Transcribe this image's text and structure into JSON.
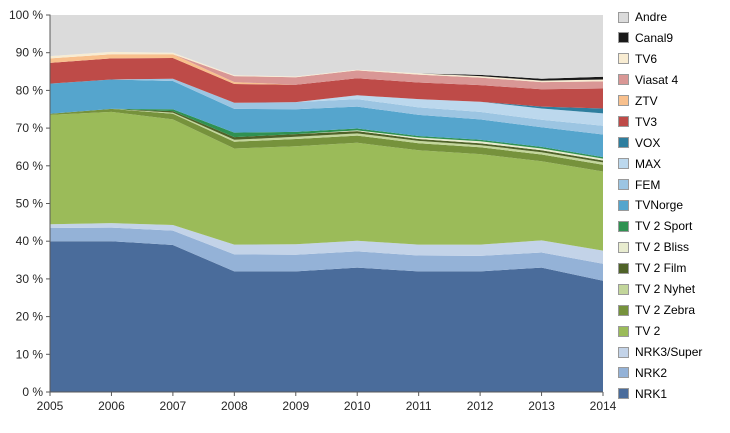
{
  "chart_data": {
    "type": "area",
    "stacked": true,
    "unit": "%",
    "title": "",
    "xlabel": "",
    "ylabel": "",
    "ylim": [
      0,
      100
    ],
    "grid": false,
    "legend_position": "right",
    "x": [
      2005,
      2006,
      2007,
      2008,
      2009,
      2010,
      2011,
      2012,
      2013,
      2014
    ],
    "y_ticks": [
      "0 %",
      "10 %",
      "20 %",
      "30 %",
      "40 %",
      "50 %",
      "60 %",
      "70 %",
      "80 %",
      "90 %",
      "100 %"
    ],
    "legend_order_top_to_bottom": [
      "Andre",
      "Canal9",
      "TV6",
      "Viasat 4",
      "ZTV",
      "TV3",
      "VOX",
      "MAX",
      "FEM",
      "TVNorge",
      "TV 2 Sport",
      "TV 2 Bliss",
      "TV 2 Film",
      "TV 2 Nyhet",
      "TV 2 Zebra",
      "TV 2",
      "NRK3/Super",
      "NRK2",
      "NRK1"
    ],
    "series": [
      {
        "name": "NRK1",
        "color": "#4A6C9B",
        "values": [
          40,
          40,
          39,
          32,
          32,
          33,
          32,
          32,
          33,
          29.5
        ]
      },
      {
        "name": "NRK2",
        "color": "#94B2D7",
        "values": [
          3.5,
          3.6,
          3.8,
          4.5,
          4.4,
          4.3,
          4.2,
          4.1,
          4,
          4.5
        ]
      },
      {
        "name": "NRK3/Super",
        "color": "#C3D3E8",
        "values": [
          1,
          1.2,
          1.5,
          2.6,
          2.8,
          2.8,
          2.9,
          3,
          3.2,
          3.5
        ]
      },
      {
        "name": "TV 2",
        "color": "#9BBB59",
        "values": [
          29,
          29.5,
          28,
          25.5,
          26,
          26,
          25,
          24,
          21,
          21
        ]
      },
      {
        "name": "TV 2 Zebra",
        "color": "#76923C",
        "values": [
          0.3,
          0.8,
          1.5,
          1.8,
          1.9,
          1.9,
          1.9,
          1.8,
          1.8,
          1.8
        ]
      },
      {
        "name": "TV 2 Nyhet",
        "color": "#C3D69B",
        "values": [
          0,
          0,
          0.3,
          0.5,
          0.6,
          0.6,
          0.6,
          0.6,
          0.6,
          0.6
        ]
      },
      {
        "name": "TV 2 Film",
        "color": "#4F6228",
        "values": [
          0,
          0,
          0.4,
          0.7,
          0.7,
          0.6,
          0.5,
          0.5,
          0.5,
          0.5
        ]
      },
      {
        "name": "TV 2 Bliss",
        "color": "#E8ECCF",
        "values": [
          0,
          0,
          0,
          0,
          0,
          0.2,
          0.4,
          0.5,
          0.5,
          0.5
        ]
      },
      {
        "name": "TV 2 Sport",
        "color": "#2F9151",
        "values": [
          0,
          0,
          0.5,
          1.2,
          0.6,
          0.5,
          0.4,
          0.4,
          0.4,
          0.4
        ]
      },
      {
        "name": "TVNorge",
        "color": "#55A5CD",
        "values": [
          8,
          7.8,
          7.5,
          6.3,
          6,
          5.8,
          5.6,
          5.4,
          5.2,
          6
        ]
      },
      {
        "name": "FEM",
        "color": "#9CC5E2",
        "values": [
          0,
          0,
          0.6,
          1.6,
          1.9,
          2,
          2,
          2,
          2,
          2.3
        ]
      },
      {
        "name": "MAX",
        "color": "#BCD8ED",
        "values": [
          0,
          0,
          0,
          0,
          0,
          1,
          2.2,
          2.7,
          3,
          3.3
        ]
      },
      {
        "name": "VOX",
        "color": "#2E7E9E",
        "values": [
          0,
          0,
          0,
          0,
          0,
          0,
          0,
          0,
          0.5,
          1.3
        ]
      },
      {
        "name": "TV3",
        "color": "#BE4B48",
        "values": [
          5.5,
          5.6,
          5.5,
          5,
          4.6,
          4.5,
          4.4,
          4.4,
          4.6,
          5.3
        ]
      },
      {
        "name": "ZTV",
        "color": "#F8C08D",
        "values": [
          1.2,
          1.1,
          1,
          0.5,
          0,
          0,
          0,
          0,
          0,
          0
        ]
      },
      {
        "name": "Viasat 4",
        "color": "#D99795",
        "values": [
          0,
          0,
          0,
          1.6,
          2,
          2.1,
          2.1,
          2,
          1.9,
          1.9
        ]
      },
      {
        "name": "TV6",
        "color": "#F8ECD2",
        "values": [
          0.6,
          0.6,
          0.4,
          0.2,
          0.2,
          0.2,
          0.3,
          0.4,
          0.4,
          0.5
        ]
      },
      {
        "name": "Canal9",
        "color": "#191919",
        "values": [
          0,
          0,
          0,
          0,
          0,
          0,
          0,
          0.3,
          0.5,
          0.7
        ]
      },
      {
        "name": "Andre",
        "color": "#DBDBDB",
        "values": [
          10.9,
          9.8,
          10,
          16,
          16.3,
          14.5,
          15.5,
          15.9,
          16.9,
          16.4
        ]
      }
    ]
  }
}
